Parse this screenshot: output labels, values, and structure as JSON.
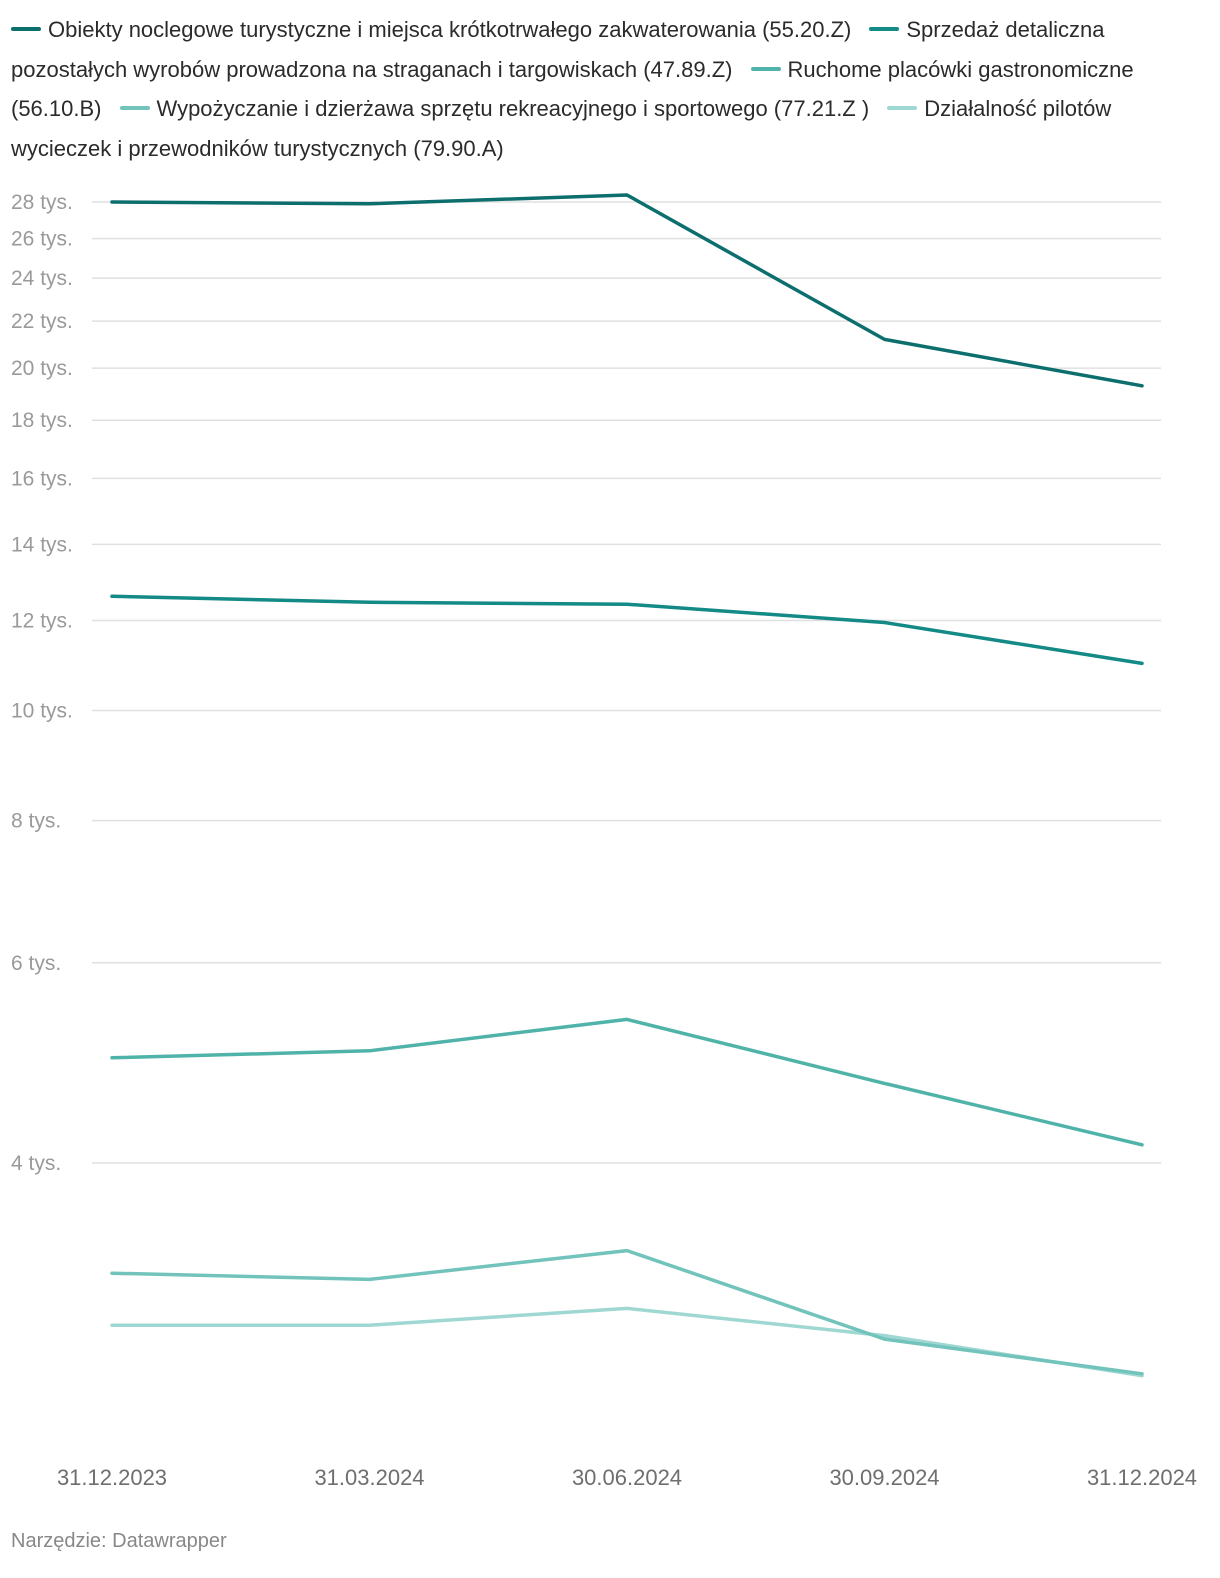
{
  "chart_data": {
    "type": "line",
    "title": "",
    "xlabel": "",
    "ylabel": "",
    "y_scale": "log",
    "ylim": [
      2500,
      28500
    ],
    "yticks": [
      {
        "value": 28000,
        "label": "28 tys."
      },
      {
        "value": 26000,
        "label": "26 tys."
      },
      {
        "value": 24000,
        "label": "24 tys."
      },
      {
        "value": 22000,
        "label": "22 tys."
      },
      {
        "value": 20000,
        "label": "20 tys."
      },
      {
        "value": 18000,
        "label": "18 tys."
      },
      {
        "value": 16000,
        "label": "16 tys."
      },
      {
        "value": 14000,
        "label": "14 tys."
      },
      {
        "value": 12000,
        "label": "12 tys."
      },
      {
        "value": 10000,
        "label": "10 tys."
      },
      {
        "value": 8000,
        "label": "8 tys."
      },
      {
        "value": 6000,
        "label": "6 tys."
      },
      {
        "value": 4000,
        "label": "4 tys."
      }
    ],
    "categories": [
      "31.12.2023",
      "31.03.2024",
      "30.06.2024",
      "30.09.2024",
      "31.12.2024"
    ],
    "series": [
      {
        "name": "Obiekty noclegowe turystyczne i miejsca krótkotrwałego zakwaterowania (55.20.Z)",
        "color": "#0d6e6e",
        "values": [
          28000,
          27900,
          28400,
          21200,
          19300
        ]
      },
      {
        "name": "Sprzedaż detaliczna pozostałych wyrobów prowadzona na straganach i targowiskach (47.89.Z)",
        "color": "#138a86",
        "values": [
          12600,
          12450,
          12400,
          11950,
          11000
        ]
      },
      {
        "name": "Ruchome placówki gastronomiczne (56.10.B)",
        "color": "#4fb3aa",
        "values": [
          4950,
          5020,
          5350,
          4700,
          4150
        ]
      },
      {
        "name": "Wypożyczanie i dzierżawa sprzętu rekreacyjnego i sportowego (77.21.Z )",
        "color": "#72c3bb",
        "values": [
          3200,
          3160,
          3350,
          2800,
          2610
        ]
      },
      {
        "name": "Działalność pilotów wycieczek i przewodników turystycznych (79.90.A)",
        "color": "#9fd8d2",
        "values": [
          2880,
          2880,
          2980,
          2820,
          2600
        ]
      }
    ]
  },
  "footer": {
    "source": "Narzędzie: Datawrapper"
  }
}
